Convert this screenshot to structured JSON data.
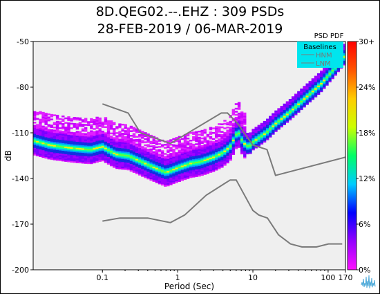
{
  "title_line1": "8D.QEG02.--.EHZ : 309 PSDs",
  "title_line2": "28-FEB-2019 / 06-MAR-2019",
  "chart_data": {
    "type": "heatmap",
    "title": "8D.QEG02.--.EHZ : 309 PSDs",
    "subtitle": "28-FEB-2019 / 06-MAR-2019",
    "xlabel": "Period (Sec)",
    "ylabel": "dB",
    "xscale": "log",
    "xlim": [
      0.012,
      170
    ],
    "ylim": [
      -200,
      -50
    ],
    "xticks": [
      0.1,
      1,
      10,
      100,
      170
    ],
    "xtick_labels": [
      "0.1",
      "1",
      "10",
      "100",
      "170"
    ],
    "yticks": [
      -200,
      -170,
      -140,
      -110,
      -80,
      -50
    ],
    "colorbar": {
      "title": "PSD PDF",
      "ticks": [
        "0%",
        "6%",
        "12%",
        "18%",
        "24%",
        "30+"
      ],
      "stops": [
        "#ff10ff",
        "#9400ff",
        "#0000ff",
        "#00ccff",
        "#00ff66",
        "#ccff00",
        "#ffcc00",
        "#ff5500",
        "#ff0000"
      ]
    },
    "legend": {
      "title": "Baselines",
      "entries": [
        "HNM",
        "LNM"
      ],
      "placement": "top-right",
      "background": "#00e5ee"
    },
    "plot_background": "#efefef",
    "baseline_color": "#7a7a7a",
    "series": [
      {
        "name": "HNM",
        "points": [
          [
            0.1,
            -91
          ],
          [
            0.22,
            -97
          ],
          [
            0.32,
            -110
          ],
          [
            0.8,
            -117
          ],
          [
            3.8,
            -97
          ],
          [
            4.6,
            -97
          ],
          [
            6.3,
            -104
          ],
          [
            7.9,
            -111
          ],
          [
            10,
            -118
          ],
          [
            15.4,
            -121
          ],
          [
            20,
            -138
          ],
          [
            170,
            -126
          ]
        ]
      },
      {
        "name": "LNM",
        "points": [
          [
            0.1,
            -168
          ],
          [
            0.17,
            -166
          ],
          [
            0.4,
            -166
          ],
          [
            0.8,
            -169
          ],
          [
            1.24,
            -164
          ],
          [
            2.4,
            -151
          ],
          [
            4.3,
            -143
          ],
          [
            5,
            -141
          ],
          [
            6,
            -141
          ],
          [
            10,
            -161
          ],
          [
            12,
            -164
          ],
          [
            15.6,
            -166
          ],
          [
            21.9,
            -177
          ],
          [
            31.6,
            -183
          ],
          [
            45,
            -185
          ],
          [
            70,
            -185
          ],
          [
            101,
            -183
          ],
          [
            154,
            -183
          ]
        ]
      }
    ],
    "pdf_mode_curve": [
      [
        0.012,
        -115
      ],
      [
        0.02,
        -118
      ],
      [
        0.04,
        -120
      ],
      [
        0.07,
        -121
      ],
      [
        0.1,
        -119
      ],
      [
        0.15,
        -124
      ],
      [
        0.22,
        -125
      ],
      [
        0.3,
        -128
      ],
      [
        0.45,
        -132
      ],
      [
        0.7,
        -136
      ],
      [
        1,
        -133
      ],
      [
        1.5,
        -130
      ],
      [
        2,
        -129
      ],
      [
        3,
        -126
      ],
      [
        4,
        -123
      ],
      [
        5,
        -119
      ],
      [
        6,
        -111
      ],
      [
        6.5,
        -110
      ],
      [
        7.2,
        -115
      ],
      [
        8,
        -118
      ],
      [
        9,
        -119
      ],
      [
        10,
        -116
      ],
      [
        15,
        -110
      ],
      [
        20,
        -104
      ],
      [
        30,
        -97
      ],
      [
        50,
        -87
      ],
      [
        80,
        -78
      ],
      [
        120,
        -68
      ],
      [
        150,
        -62
      ],
      [
        170,
        -59
      ]
    ]
  }
}
